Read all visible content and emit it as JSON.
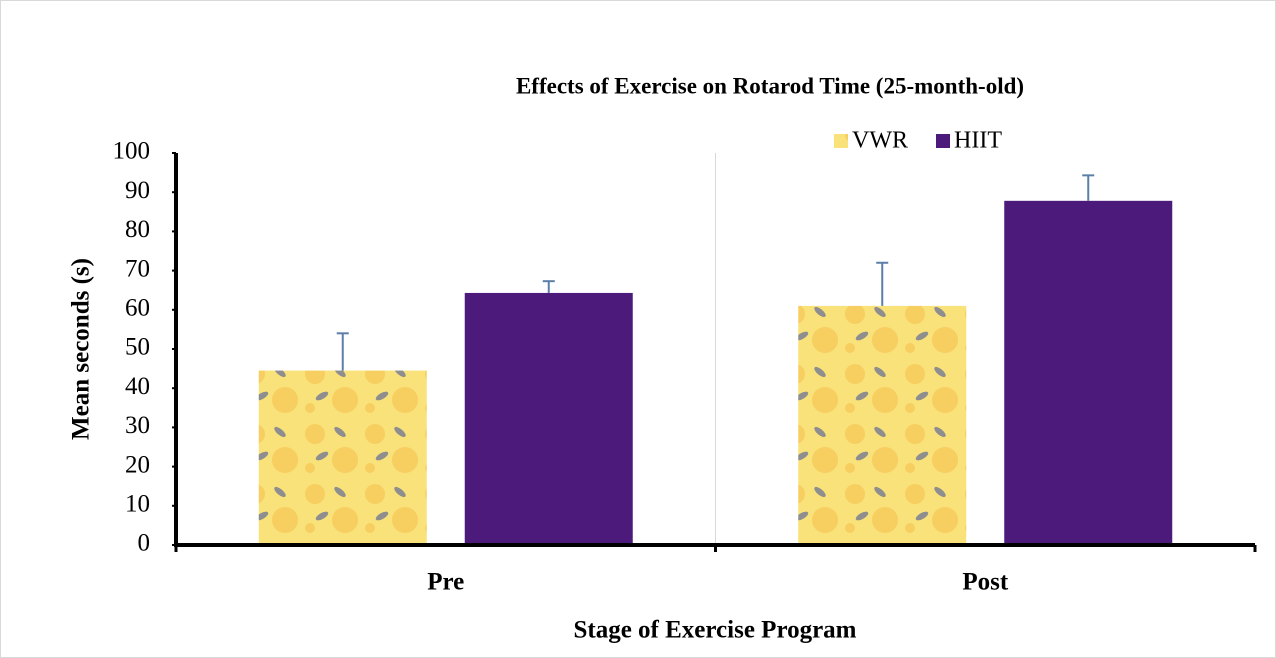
{
  "chart_data": {
    "type": "bar",
    "title": "Effects of Exercise on Rotarod Time (25-month-old)",
    "x_label": "Stage of Exercise Program",
    "y_label": "Mean seconds (s)",
    "categories": [
      "Pre",
      "Post"
    ],
    "series": [
      {
        "name": "VWR",
        "color": "#f9e27a",
        "values": [
          44.5,
          61
        ],
        "errors": [
          9.5,
          11
        ]
      },
      {
        "name": "HIIT",
        "color": "#4b1a7a",
        "values": [
          64.3,
          87.8
        ],
        "errors": [
          3,
          6.5
        ]
      }
    ],
    "error_color": "#5b7fa6",
    "ylim": [
      0,
      100
    ],
    "yticks": [
      0,
      10,
      20,
      30,
      40,
      50,
      60,
      70,
      80,
      90,
      100
    ],
    "category_dividers": true,
    "legend": "top-right"
  }
}
